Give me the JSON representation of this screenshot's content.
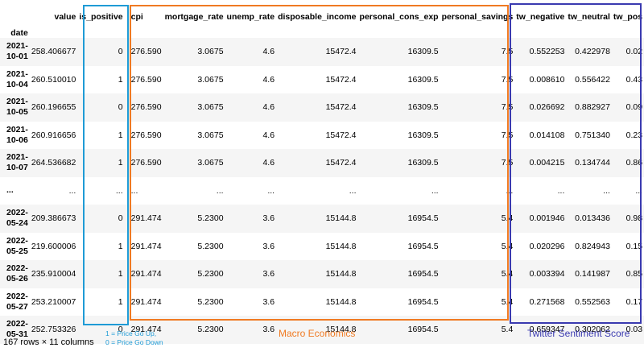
{
  "table": {
    "columns": [
      "value",
      "is_positive",
      "cpi",
      "mortgage_rate",
      "unemp_rate",
      "disposable_income",
      "personal_cons_exp",
      "personal_savings",
      "tw_negative",
      "tw_neutral",
      "tw_pos"
    ],
    "index_name": "date",
    "rows": [
      {
        "date": "2021-10-01",
        "cells": [
          "258.406677",
          "0",
          "276.590",
          "3.0675",
          "4.6",
          "15472.4",
          "16309.5",
          "7.5",
          "0.552253",
          "0.422978",
          "0.02"
        ]
      },
      {
        "date": "2021-10-04",
        "cells": [
          "260.510010",
          "1",
          "276.590",
          "3.0675",
          "4.6",
          "15472.4",
          "16309.5",
          "7.5",
          "0.008610",
          "0.556422",
          "0.43"
        ]
      },
      {
        "date": "2021-10-05",
        "cells": [
          "260.196655",
          "0",
          "276.590",
          "3.0675",
          "4.6",
          "15472.4",
          "16309.5",
          "7.5",
          "0.026692",
          "0.882927",
          "0.09"
        ]
      },
      {
        "date": "2021-10-06",
        "cells": [
          "260.916656",
          "1",
          "276.590",
          "3.0675",
          "4.6",
          "15472.4",
          "16309.5",
          "7.5",
          "0.014108",
          "0.751340",
          "0.23"
        ]
      },
      {
        "date": "2021-10-07",
        "cells": [
          "264.536682",
          "1",
          "276.590",
          "3.0675",
          "4.6",
          "15472.4",
          "16309.5",
          "7.5",
          "0.004215",
          "0.134744",
          "0.86"
        ]
      },
      {
        "date": "...",
        "cells": [
          "...",
          "...",
          "...",
          "...",
          "...",
          "...",
          "...",
          "...",
          "...",
          "...",
          "..."
        ]
      },
      {
        "date": "2022-05-24",
        "cells": [
          "209.386673",
          "0",
          "291.474",
          "5.2300",
          "3.6",
          "15144.8",
          "16954.5",
          "5.4",
          "0.001946",
          "0.013436",
          "0.98"
        ]
      },
      {
        "date": "2022-05-25",
        "cells": [
          "219.600006",
          "1",
          "291.474",
          "5.2300",
          "3.6",
          "15144.8",
          "16954.5",
          "5.4",
          "0.020296",
          "0.824943",
          "0.15"
        ]
      },
      {
        "date": "2022-05-26",
        "cells": [
          "235.910004",
          "1",
          "291.474",
          "5.2300",
          "3.6",
          "15144.8",
          "16954.5",
          "5.4",
          "0.003394",
          "0.141987",
          "0.85"
        ]
      },
      {
        "date": "2022-05-27",
        "cells": [
          "253.210007",
          "1",
          "291.474",
          "5.2300",
          "3.6",
          "15144.8",
          "16954.5",
          "5.4",
          "0.271568",
          "0.552563",
          "0.17"
        ]
      },
      {
        "date": "2022-05-31",
        "cells": [
          "252.753326",
          "0",
          "291.474",
          "5.2300",
          "3.6",
          "15144.8",
          "16954.5",
          "5.4",
          "0.659347",
          "0.302062",
          "0.03"
        ]
      }
    ]
  },
  "shape_info": "167 rows × 11 columns",
  "annotations": {
    "is_positive_legend_line1": "1 = Price Go Up,",
    "is_positive_legend_line2": "0 = Price Go Down",
    "macro_label": "Macro Economics",
    "twitter_label": "Twitter Sentiment Score"
  },
  "colors": {
    "is_positive_box": "#1f9bd6",
    "macro_box": "#f07a22",
    "twitter_box": "#3a3ab0",
    "row_stripe": "#f5f5f5"
  }
}
